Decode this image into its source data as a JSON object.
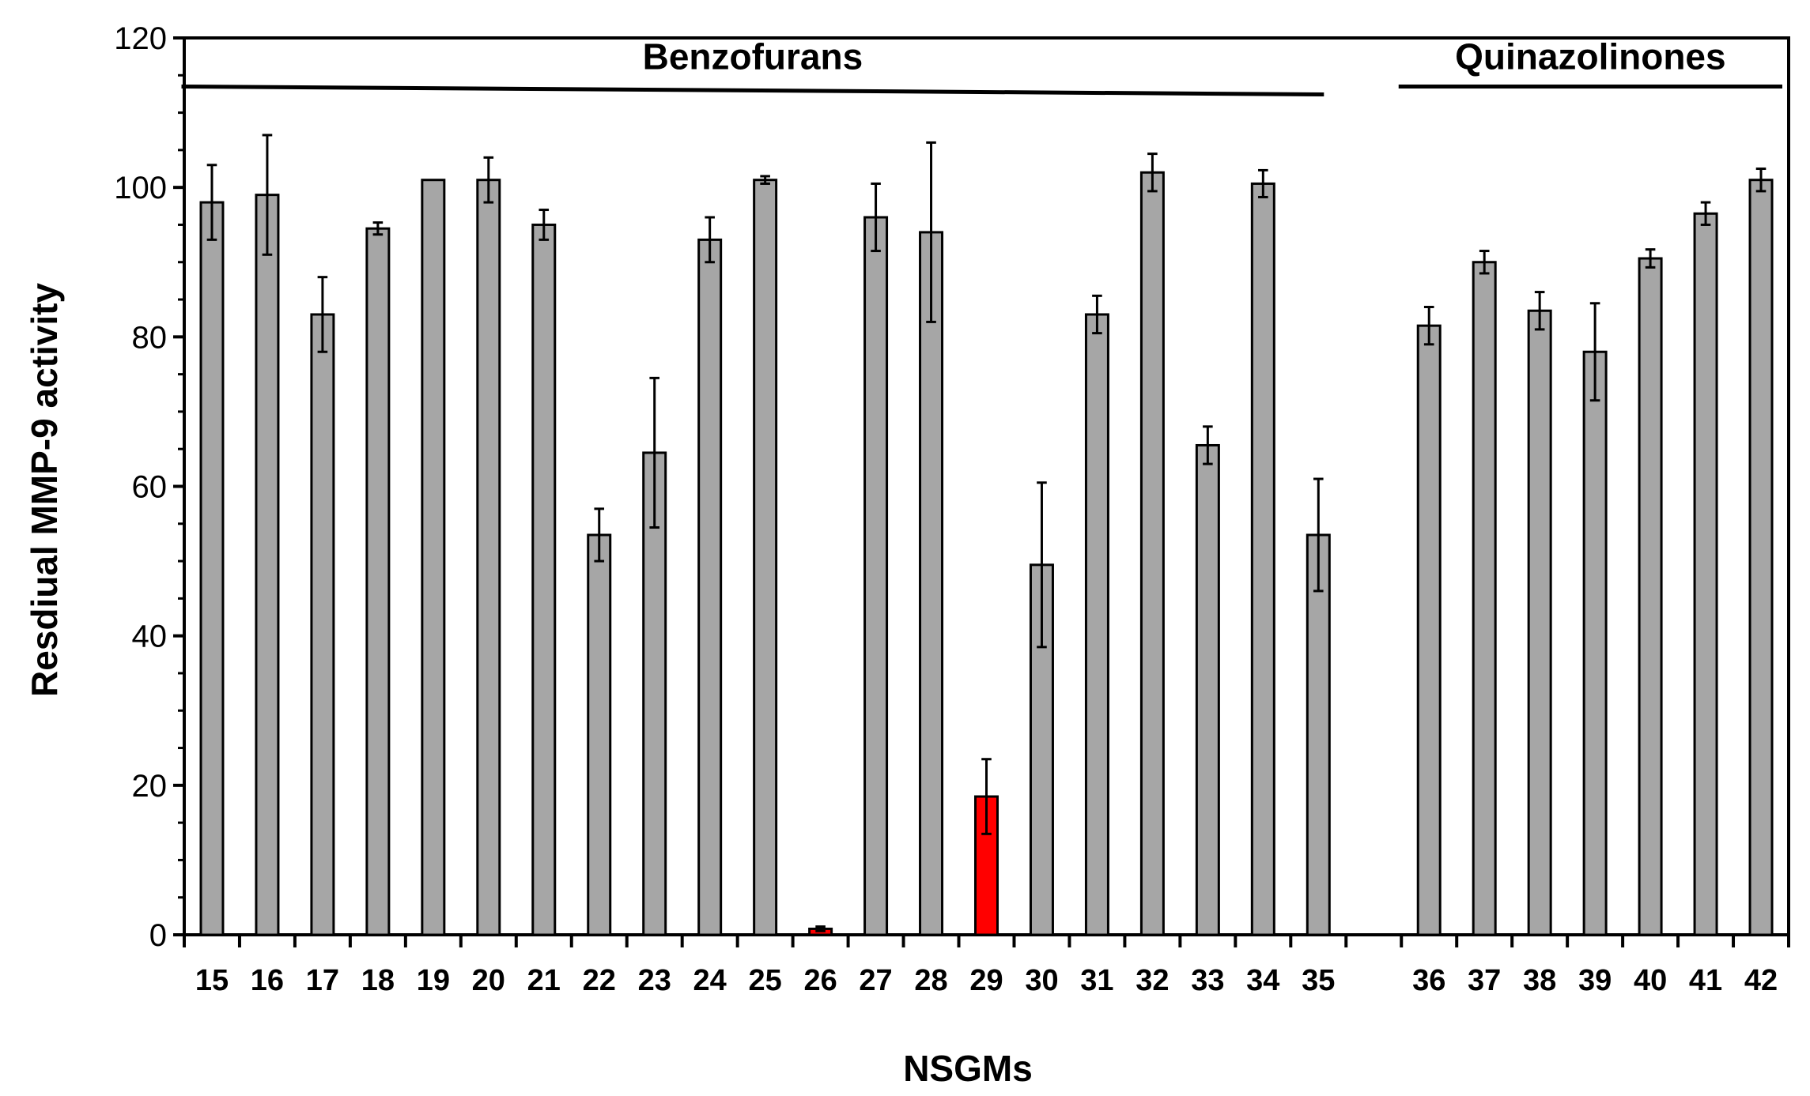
{
  "chart_data": {
    "type": "bar",
    "xlabel": "NSGMs",
    "ylabel": "Resdiual MMP-9 activity",
    "ylim": [
      0,
      120
    ],
    "yticks": [
      0,
      20,
      40,
      60,
      80,
      100,
      120
    ],
    "grid": false,
    "legend": "none",
    "colors": {
      "default": "#a6a6a6",
      "highlight": "#ff0000",
      "edge": "#000000"
    },
    "groups": [
      {
        "label": "Benzofurans",
        "from": "15",
        "to": "35"
      },
      {
        "label": "Quinazolinones",
        "from": "36",
        "to": "42"
      }
    ],
    "categories": [
      "15",
      "16",
      "17",
      "18",
      "19",
      "20",
      "21",
      "22",
      "23",
      "24",
      "25",
      "26",
      "27",
      "28",
      "29",
      "30",
      "31",
      "32",
      "33",
      "34",
      "35",
      "36",
      "37",
      "38",
      "39",
      "40",
      "41",
      "42"
    ],
    "values": [
      98,
      99,
      83,
      94.5,
      101,
      101,
      95,
      53.5,
      64.5,
      93,
      101,
      0.8,
      96,
      94,
      18.5,
      49.5,
      83,
      102,
      65.5,
      100.5,
      53.5,
      81.5,
      90,
      83.5,
      78,
      90.5,
      96.5,
      101
    ],
    "errors": [
      5,
      8,
      5,
      0.8,
      0,
      3,
      2,
      3.5,
      10,
      3,
      0.5,
      0.3,
      4.5,
      12,
      5,
      11,
      2.5,
      2.5,
      2.5,
      1.8,
      7.5,
      2.5,
      1.5,
      2.5,
      6.5,
      1.2,
      1.5,
      1.5
    ],
    "highlighted": [
      "26",
      "29"
    ]
  }
}
